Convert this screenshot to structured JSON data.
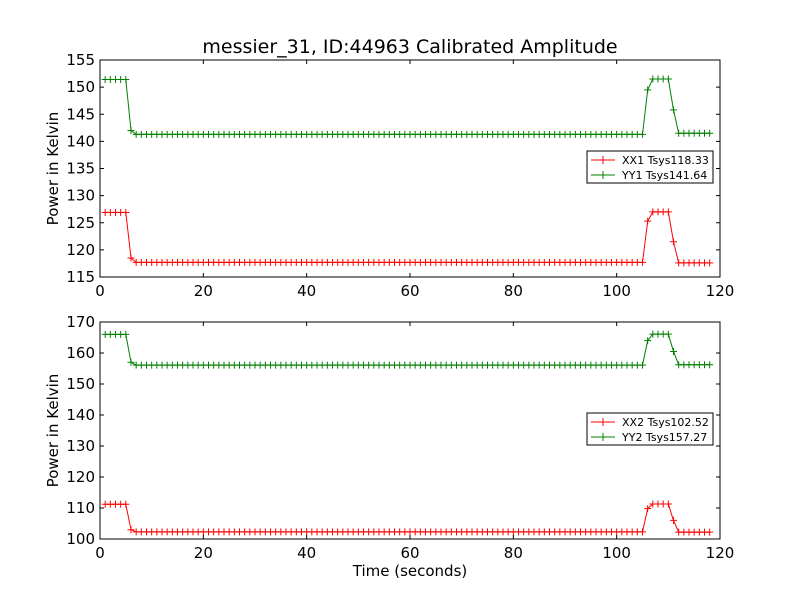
{
  "chart_data": [
    {
      "type": "line",
      "title": "messier_31, ID:44963 Calibrated Amplitude",
      "xlabel": "",
      "ylabel": "Power in Kelvin",
      "xlim": [
        0,
        120
      ],
      "ylim": [
        115,
        155
      ],
      "xticks": [
        0,
        20,
        40,
        60,
        80,
        100,
        120
      ],
      "yticks": [
        115,
        120,
        125,
        130,
        135,
        140,
        145,
        150,
        155
      ],
      "grid": false,
      "legend_position": "center-right",
      "x": {
        "start": 1,
        "step": 1,
        "count": 118
      },
      "series": [
        {
          "name": "XX1 Tsys118.33",
          "color": "#ff0000",
          "segments": [
            {
              "from": 1,
              "to": 5,
              "value": 126.9
            },
            {
              "from": 6,
              "to": 6,
              "value": 118.5
            },
            {
              "from": 7,
              "to": 105,
              "value": 117.7
            },
            {
              "from": 106,
              "to": 106,
              "value": 125.3
            },
            {
              "from": 107,
              "to": 110,
              "value": 127.0
            },
            {
              "from": 111,
              "to": 111,
              "value": 121.5
            },
            {
              "from": 112,
              "to": 118,
              "value": 117.6
            }
          ]
        },
        {
          "name": "YY1 Tsys141.64",
          "color": "#008000",
          "segments": [
            {
              "from": 1,
              "to": 5,
              "value": 151.4
            },
            {
              "from": 6,
              "to": 6,
              "value": 142.0
            },
            {
              "from": 7,
              "to": 105,
              "value": 141.3
            },
            {
              "from": 106,
              "to": 106,
              "value": 149.5
            },
            {
              "from": 107,
              "to": 110,
              "value": 151.5
            },
            {
              "from": 111,
              "to": 111,
              "value": 145.8
            },
            {
              "from": 112,
              "to": 118,
              "value": 141.5
            }
          ]
        }
      ]
    },
    {
      "type": "line",
      "title": "",
      "xlabel": "Time (seconds)",
      "ylabel": "Power in Kelvin",
      "xlim": [
        0,
        120
      ],
      "ylim": [
        100,
        170
      ],
      "xticks": [
        0,
        20,
        40,
        60,
        80,
        100,
        120
      ],
      "yticks": [
        100,
        110,
        120,
        130,
        140,
        150,
        160,
        170
      ],
      "grid": false,
      "legend_position": "center-right",
      "x": {
        "start": 1,
        "step": 1,
        "count": 118
      },
      "series": [
        {
          "name": "XX2 Tsys102.52",
          "color": "#ff0000",
          "segments": [
            {
              "from": 1,
              "to": 5,
              "value": 111.2
            },
            {
              "from": 6,
              "to": 6,
              "value": 103.0
            },
            {
              "from": 7,
              "to": 105,
              "value": 102.3
            },
            {
              "from": 106,
              "to": 106,
              "value": 109.8
            },
            {
              "from": 107,
              "to": 110,
              "value": 111.3
            },
            {
              "from": 111,
              "to": 111,
              "value": 106.0
            },
            {
              "from": 112,
              "to": 118,
              "value": 102.2
            }
          ]
        },
        {
          "name": "YY2 Tsys157.27",
          "color": "#008000",
          "segments": [
            {
              "from": 1,
              "to": 5,
              "value": 166.0
            },
            {
              "from": 6,
              "to": 6,
              "value": 157.0
            },
            {
              "from": 7,
              "to": 105,
              "value": 156.1
            },
            {
              "from": 106,
              "to": 106,
              "value": 164.0
            },
            {
              "from": 107,
              "to": 110,
              "value": 166.1
            },
            {
              "from": 111,
              "to": 111,
              "value": 160.5
            },
            {
              "from": 112,
              "to": 118,
              "value": 156.2
            }
          ]
        }
      ]
    }
  ]
}
